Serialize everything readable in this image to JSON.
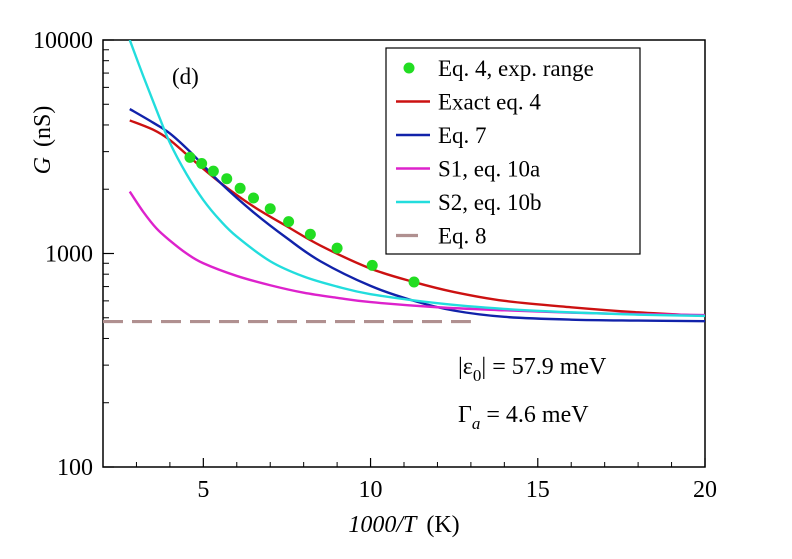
{
  "chart_data": {
    "type": "line",
    "panel_label": "(d)",
    "xlabel": {
      "main": "1000/T",
      "unit": "(K)"
    },
    "ylabel": {
      "symbol": "G",
      "unit": "(nS)"
    },
    "xlim": [
      2,
      20
    ],
    "ylim": [
      100,
      10000
    ],
    "yscale": "log",
    "x_ticks": [
      5,
      10,
      15,
      20
    ],
    "y_ticks": [
      100,
      1000,
      10000
    ],
    "legend_position": "top-right",
    "series": [
      {
        "name": "Eq. 4, exp. range",
        "kind": "markers",
        "color": "#22dd22",
        "x": [
          4.6,
          4.95,
          5.3,
          5.7,
          6.1,
          6.5,
          7.0,
          7.55,
          8.2,
          9.0,
          10.05,
          11.3
        ],
        "y": [
          2820,
          2640,
          2430,
          2240,
          2020,
          1820,
          1620,
          1410,
          1230,
          1060,
          880,
          735
        ]
      },
      {
        "name": "Exact eq. 4",
        "kind": "line",
        "color": "#cc1111",
        "x": [
          2.8,
          3.5,
          4.0,
          4.6,
          5.5,
          6.5,
          7.5,
          8.5,
          10,
          11.3,
          12.5,
          14,
          16,
          18,
          20
        ],
        "y": [
          4200,
          3800,
          3400,
          2820,
          2150,
          1660,
          1340,
          1090,
          850,
          735,
          660,
          600,
          560,
          530,
          510
        ]
      },
      {
        "name": "Eq. 7",
        "kind": "line",
        "color": "#1122aa",
        "x": [
          2.8,
          3.5,
          4.0,
          4.6,
          5.5,
          6.5,
          7.5,
          8.5,
          10,
          11.3,
          12.5,
          14,
          16,
          18,
          20
        ],
        "y": [
          4750,
          4100,
          3650,
          3000,
          2150,
          1560,
          1180,
          920,
          705,
          600,
          540,
          505,
          490,
          485,
          482
        ]
      },
      {
        "name": "S1, eq. 10a",
        "kind": "line",
        "color": "#dd22cc",
        "x": [
          2.8,
          3.2,
          3.6,
          4.0,
          4.5,
          5.0,
          6.0,
          7.0,
          8.0,
          9.0,
          10,
          12,
          14,
          16,
          18,
          20
        ],
        "y": [
          1950,
          1570,
          1310,
          1150,
          1000,
          900,
          785,
          710,
          655,
          620,
          592,
          560,
          542,
          528,
          520,
          515
        ]
      },
      {
        "name": "S2, eq. 10b",
        "kind": "line",
        "color": "#22dddd",
        "x": [
          2.8,
          3.2,
          3.6,
          4.0,
          4.5,
          5.0,
          5.5,
          6.0,
          7.0,
          8.0,
          9.0,
          10,
          12,
          14,
          16,
          18,
          20
        ],
        "y": [
          10000,
          6800,
          4700,
          3300,
          2350,
          1780,
          1430,
          1200,
          920,
          780,
          700,
          645,
          585,
          550,
          530,
          517,
          510
        ]
      },
      {
        "name": "Eq. 8",
        "kind": "dashed",
        "color": "#b09090",
        "x": [
          2,
          13
        ],
        "y": [
          480,
          480
        ]
      }
    ],
    "annotations": [
      {
        "text_parts": [
          "|ε",
          "0",
          "| = 57.9 meV"
        ],
        "anchor": "right-middle"
      },
      {
        "text_parts": [
          "Γ",
          "a",
          " = 4.6 meV"
        ],
        "anchor": "right-lower"
      }
    ]
  }
}
